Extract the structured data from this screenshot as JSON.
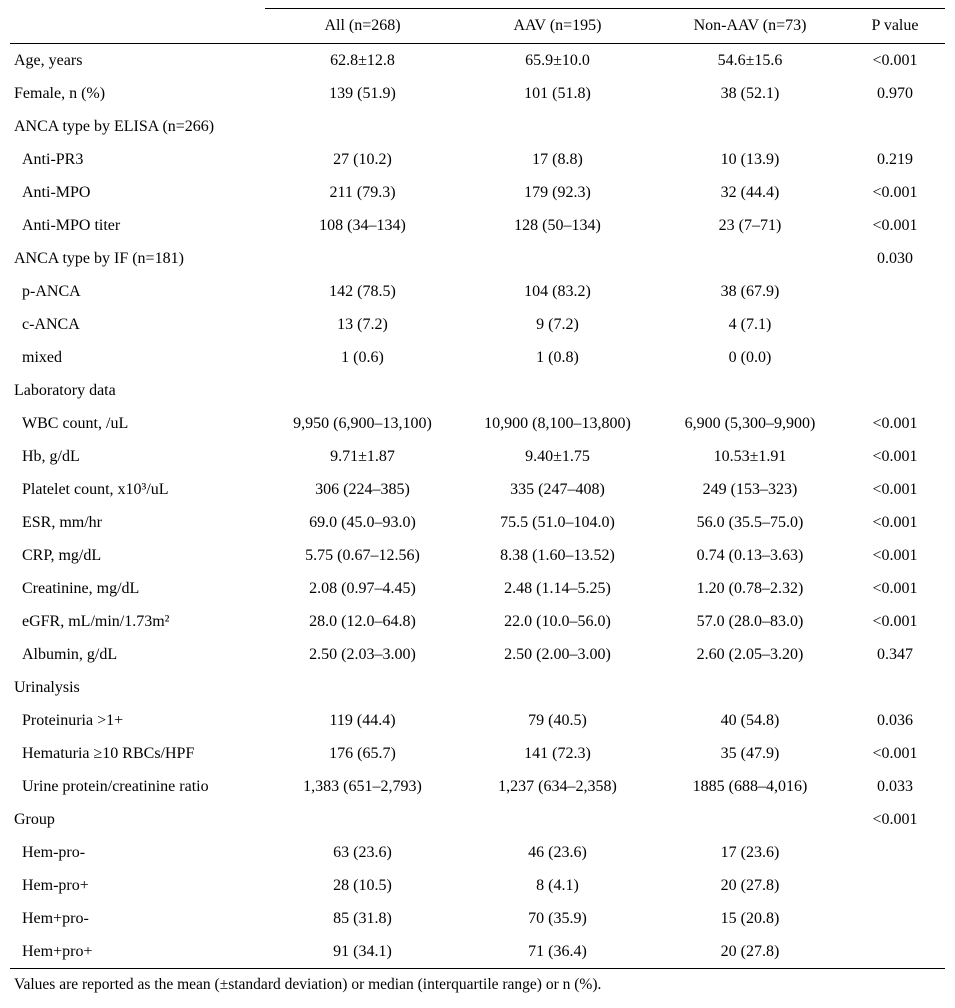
{
  "colors": {
    "background": "#ffffff",
    "text": "#000000",
    "rule": "#000000"
  },
  "table": {
    "columns": [
      "",
      "All (n=268)",
      "AAV (n=195)",
      "Non-AAV (n=73)",
      "P value"
    ],
    "rows": [
      {
        "label": "Age, years",
        "indent": 0,
        "values": [
          "62.8±12.8",
          "65.9±10.0",
          "54.6±15.6"
        ],
        "p": "<0.001"
      },
      {
        "label": "Female, n (%)",
        "indent": 0,
        "values": [
          "139 (51.9)",
          "101 (51.8)",
          "38 (52.1)"
        ],
        "p": "0.970"
      },
      {
        "label": "ANCA type by ELISA (n=266)",
        "indent": 0,
        "values": [
          "",
          "",
          ""
        ],
        "p": ""
      },
      {
        "label": "Anti-PR3",
        "indent": 1,
        "values": [
          "27 (10.2)",
          "17 (8.8)",
          "10 (13.9)"
        ],
        "p": "0.219"
      },
      {
        "label": "Anti-MPO",
        "indent": 1,
        "values": [
          "211 (79.3)",
          "179 (92.3)",
          "32 (44.4)"
        ],
        "p": "<0.001"
      },
      {
        "label": "Anti-MPO titer",
        "indent": 1,
        "values": [
          "108 (34–134)",
          "128 (50–134)",
          "23 (7–71)"
        ],
        "p": "<0.001"
      },
      {
        "label": "ANCA type by IF (n=181)",
        "indent": 0,
        "values": [
          "",
          "",
          ""
        ],
        "p": "0.030"
      },
      {
        "label": "p-ANCA",
        "indent": 1,
        "values": [
          "142 (78.5)",
          "104 (83.2)",
          "38 (67.9)"
        ],
        "p": ""
      },
      {
        "label": "c-ANCA",
        "indent": 1,
        "values": [
          "13 (7.2)",
          "9 (7.2)",
          "4 (7.1)"
        ],
        "p": ""
      },
      {
        "label": "mixed",
        "indent": 1,
        "values": [
          "1 (0.6)",
          "1 (0.8)",
          "0 (0.0)"
        ],
        "p": ""
      },
      {
        "label": "Laboratory data",
        "indent": 0,
        "values": [
          "",
          "",
          ""
        ],
        "p": ""
      },
      {
        "label": "WBC count, /uL",
        "indent": 1,
        "values": [
          "9,950 (6,900–13,100)",
          "10,900 (8,100–13,800)",
          "6,900 (5,300–9,900)"
        ],
        "p": "<0.001"
      },
      {
        "label": "Hb, g/dL",
        "indent": 1,
        "values": [
          "9.71±1.87",
          "9.40±1.75",
          "10.53±1.91"
        ],
        "p": "<0.001"
      },
      {
        "label": "Platelet count, x10³/uL",
        "indent": 1,
        "values": [
          "306 (224–385)",
          "335 (247–408)",
          "249 (153–323)"
        ],
        "p": "<0.001"
      },
      {
        "label": "ESR, mm/hr",
        "indent": 1,
        "values": [
          "69.0 (45.0–93.0)",
          "75.5 (51.0–104.0)",
          "56.0 (35.5–75.0)"
        ],
        "p": "<0.001"
      },
      {
        "label": "CRP, mg/dL",
        "indent": 1,
        "values": [
          "5.75 (0.67–12.56)",
          "8.38 (1.60–13.52)",
          "0.74 (0.13–3.63)"
        ],
        "p": "<0.001"
      },
      {
        "label": "Creatinine, mg/dL",
        "indent": 1,
        "values": [
          "2.08 (0.97–4.45)",
          "2.48 (1.14–5.25)",
          "1.20 (0.78–2.32)"
        ],
        "p": "<0.001"
      },
      {
        "label": "eGFR, mL/min/1.73m²",
        "indent": 1,
        "values": [
          "28.0 (12.0–64.8)",
          "22.0 (10.0–56.0)",
          "57.0 (28.0–83.0)"
        ],
        "p": "<0.001"
      },
      {
        "label": "Albumin, g/dL",
        "indent": 1,
        "values": [
          "2.50 (2.03–3.00)",
          "2.50 (2.00–3.00)",
          "2.60 (2.05–3.20)"
        ],
        "p": "0.347"
      },
      {
        "label": "Urinalysis",
        "indent": 0,
        "values": [
          "",
          "",
          ""
        ],
        "p": ""
      },
      {
        "label": "Proteinuria >1+",
        "indent": 1,
        "values": [
          "119 (44.4)",
          "79 (40.5)",
          "40 (54.8)"
        ],
        "p": "0.036"
      },
      {
        "label": "Hematuria ≥10 RBCs/HPF",
        "indent": 1,
        "values": [
          "176 (65.7)",
          "141 (72.3)",
          "35 (47.9)"
        ],
        "p": "<0.001"
      },
      {
        "label": "Urine protein/creatinine ratio",
        "indent": 1,
        "values": [
          "1,383 (651–2,793)",
          "1,237 (634–2,358)",
          "1885 (688–4,016)"
        ],
        "p": "0.033"
      },
      {
        "label": "Group",
        "indent": 0,
        "values": [
          "",
          "",
          ""
        ],
        "p": "<0.001"
      },
      {
        "label": "Hem-pro-",
        "indent": 1,
        "values": [
          "63 (23.6)",
          "46 (23.6)",
          "17 (23.6)"
        ],
        "p": ""
      },
      {
        "label": "Hem-pro+",
        "indent": 1,
        "values": [
          "28 (10.5)",
          "8 (4.1)",
          "20 (27.8)"
        ],
        "p": ""
      },
      {
        "label": "Hem+pro-",
        "indent": 1,
        "values": [
          "85 (31.8)",
          "70 (35.9)",
          "15 (20.8)"
        ],
        "p": ""
      },
      {
        "label": "Hem+pro+",
        "indent": 1,
        "values": [
          "91 (34.1)",
          "71 (36.4)",
          "20 (27.8)"
        ],
        "p": ""
      }
    ],
    "footnote": "Values are reported as the mean (±standard deviation) or median (interquartile range) or n (%)."
  }
}
